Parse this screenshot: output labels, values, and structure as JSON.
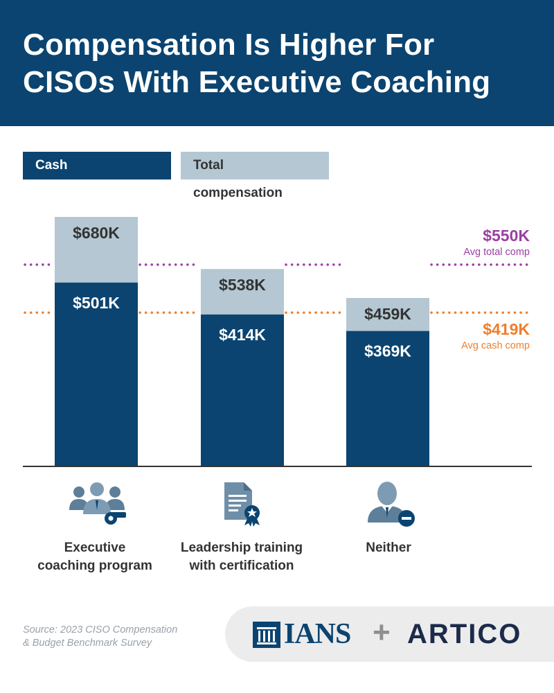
{
  "header": {
    "title_line1": "Compensation Is Higher For",
    "title_line2": "CISOs With Executive Coaching"
  },
  "legend": {
    "cash_label": "Cash compensation",
    "total_label": "Total compensation"
  },
  "colors": {
    "header_bg": "#0b4470",
    "cash": "#0b4470",
    "total": "#b4c7d3",
    "avg_total": "#9b3fa3",
    "avg_cash": "#ee7e2d",
    "label_dark": "#333333"
  },
  "chart_data": {
    "type": "bar",
    "stacked": "overlay",
    "title": "Compensation Is Higher For CISOs With Executive Coaching",
    "categories": [
      "Executive coaching program",
      "Leadership training with certification",
      "Neither"
    ],
    "series": [
      {
        "name": "Cash compensation",
        "values": [
          501,
          414,
          369
        ],
        "labels": [
          "$501K",
          "$414K",
          "$369K"
        ]
      },
      {
        "name": "Total compensation",
        "values": [
          680,
          538,
          459
        ],
        "labels": [
          "$680K",
          "$538K",
          "$459K"
        ]
      }
    ],
    "reference_lines": [
      {
        "label": "Avg total comp",
        "value": 550,
        "value_label": "$550K",
        "style": "dotted"
      },
      {
        "label": "Avg cash comp",
        "value": 419,
        "value_label": "$419K",
        "style": "dotted"
      }
    ],
    "unit": "$K",
    "ylim": [
      0,
      680
    ],
    "grid": false,
    "legend_position": "top-left"
  },
  "categories_display": [
    {
      "line1": "Executive",
      "line2": "coaching program",
      "icon": "team-whistle-icon"
    },
    {
      "line1": "Leadership training",
      "line2": "with certification",
      "icon": "certificate-document-icon"
    },
    {
      "line1": "Neither",
      "line2": "",
      "icon": "person-minus-icon"
    }
  ],
  "footer": {
    "source_line1": "Source: 2023 CISO Compensation",
    "source_line2": "& Budget Benchmark Survey",
    "logo_ians": "IANS",
    "logo_plus": "+",
    "logo_artico": "ARTICO"
  }
}
